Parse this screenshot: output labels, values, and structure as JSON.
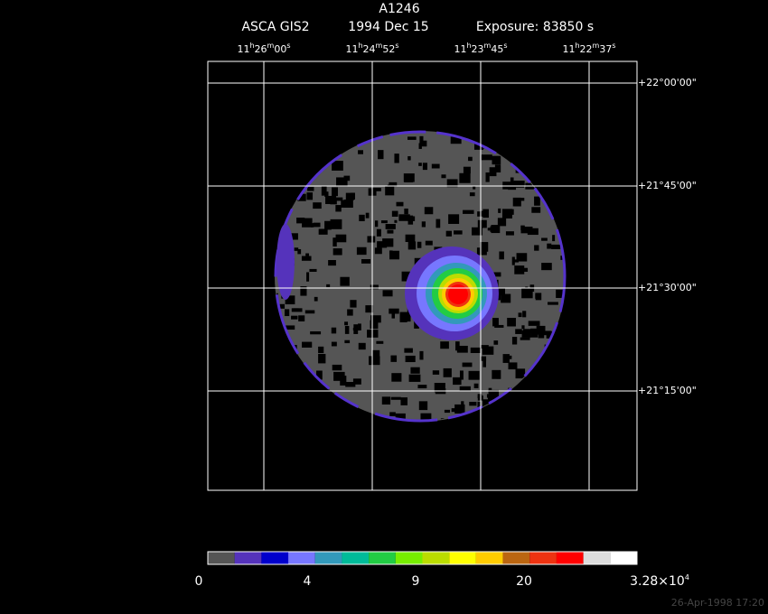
{
  "header": {
    "title": "A1246",
    "instrument": "ASCA GIS2",
    "date": "1994 Dec 15",
    "exposure": "Exposure: 83850 s"
  },
  "ra_labels": [
    [
      "11",
      "h",
      "26",
      "m",
      "00",
      "s"
    ],
    [
      "11",
      "h",
      "24",
      "m",
      "52",
      "s"
    ],
    [
      "11",
      "h",
      "23",
      "m",
      "45",
      "s"
    ],
    [
      "11",
      "h",
      "22",
      "m",
      "37",
      "s"
    ]
  ],
  "dec_labels": [
    "+22°00'00\"",
    "+21°45'00\"",
    "+21°30'00\"",
    "+21°15'00\""
  ],
  "colorbar": {
    "colors": [
      "#555555",
      "#5533bb",
      "#0000cc",
      "#7777ff",
      "#3399bb",
      "#00bb99",
      "#22cc44",
      "#77ee00",
      "#bbdd00",
      "#ffff00",
      "#ffcc00",
      "#bb6611",
      "#ee3311",
      "#ff0000",
      "#dddddd",
      "#ffffff"
    ],
    "labels": [
      [
        "0"
      ],
      [
        "4"
      ],
      [
        "9"
      ],
      [
        "20"
      ],
      [
        "3.28×10",
        "4"
      ]
    ]
  },
  "timestamp": "26-Apr-1998 17:20"
}
